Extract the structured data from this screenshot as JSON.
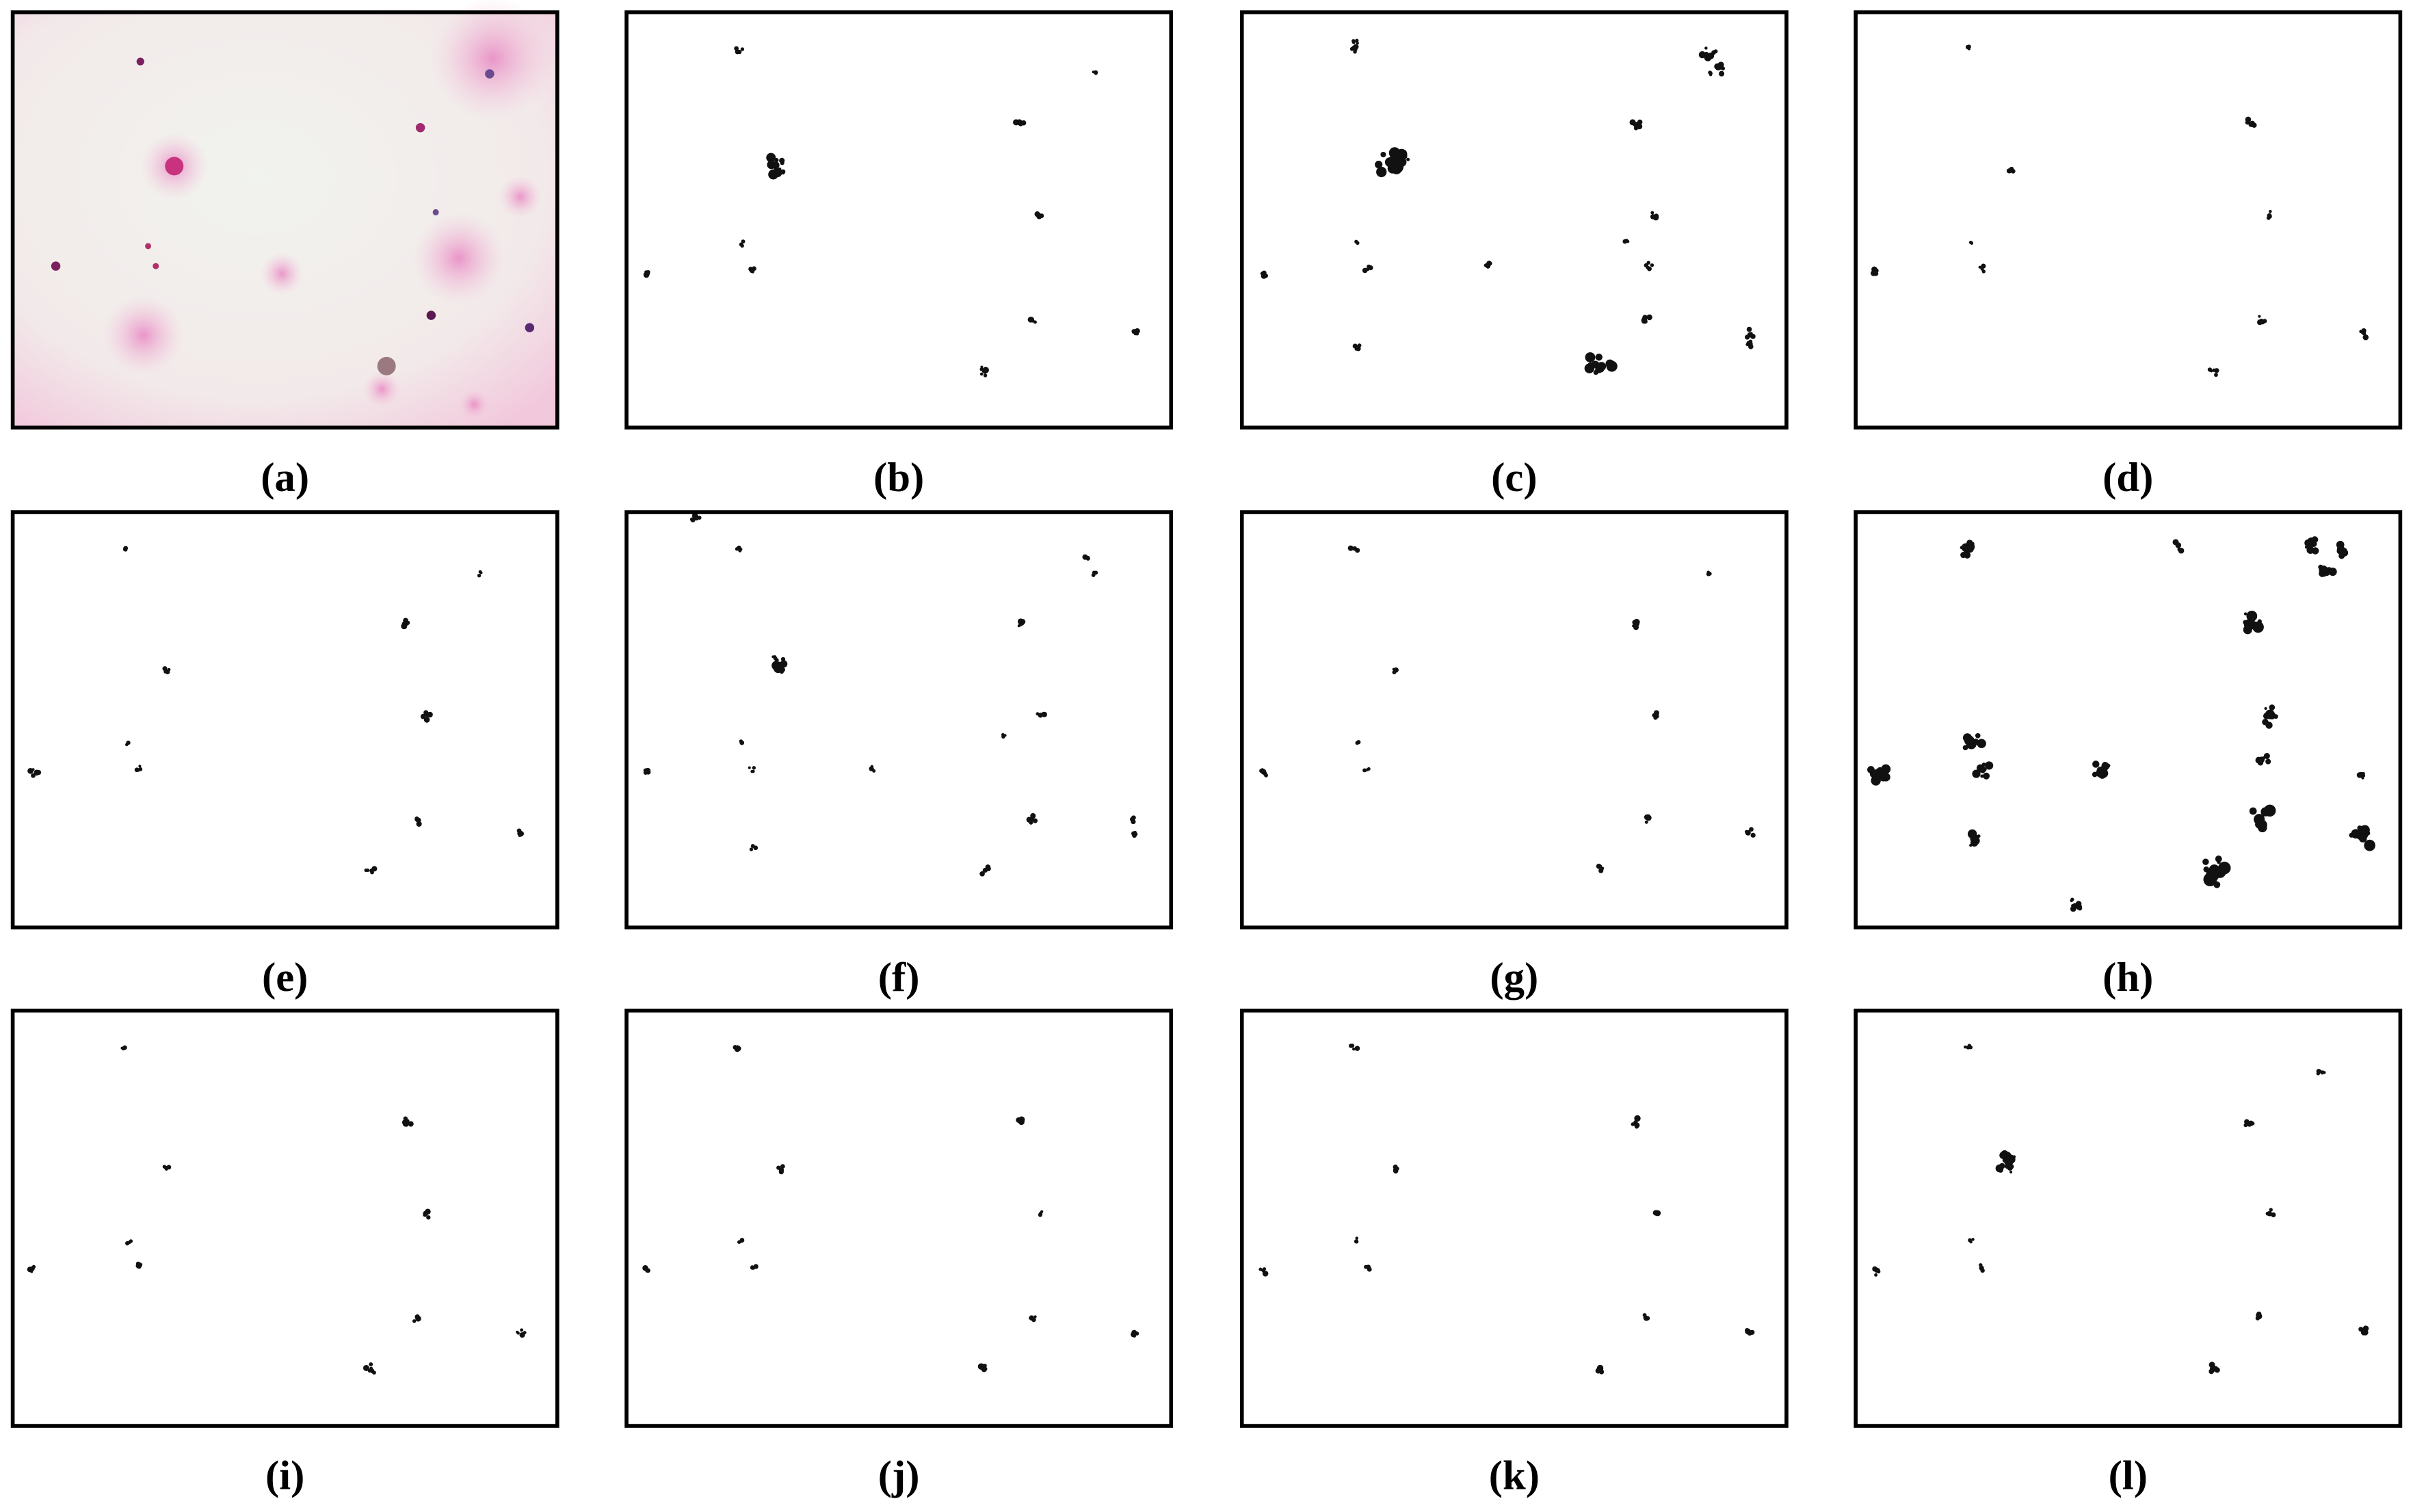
{
  "figure": {
    "panels": [
      {
        "label": "(a)"
      },
      {
        "label": "(b)"
      },
      {
        "label": "(c)"
      },
      {
        "label": "(d)"
      },
      {
        "label": "(e)"
      },
      {
        "label": "(f)"
      },
      {
        "label": "(g)"
      },
      {
        "label": "(h)"
      },
      {
        "label": "(i)"
      },
      {
        "label": "(j)"
      },
      {
        "label": "(k)"
      },
      {
        "label": "(l)"
      }
    ]
  }
}
